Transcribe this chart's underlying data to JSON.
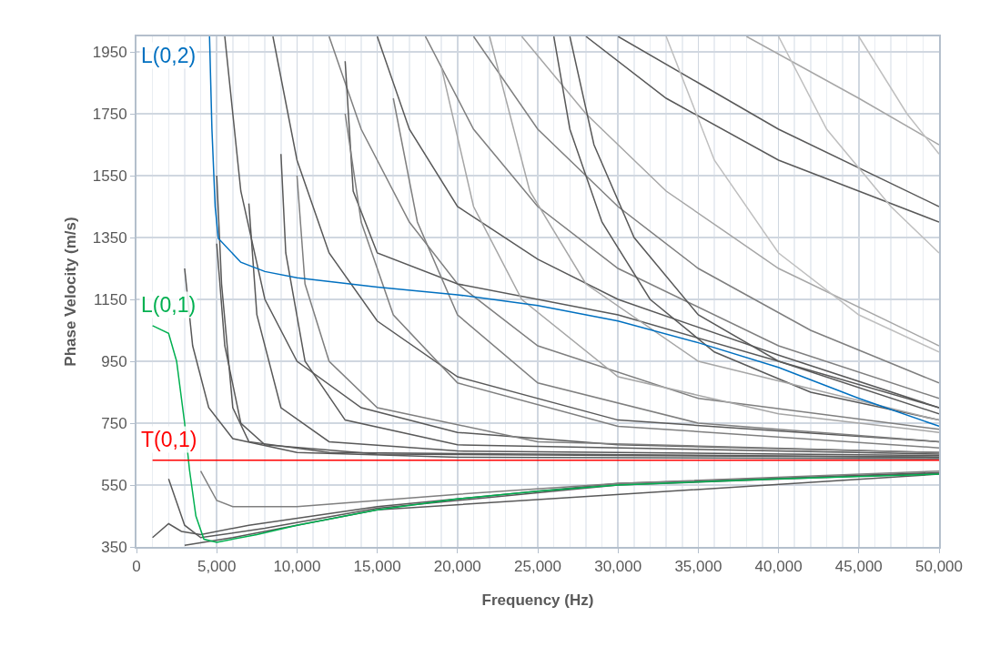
{
  "chart_data": {
    "type": "line",
    "xlabel": "Frequency (Hz)",
    "ylabel": "Phase Velocity (m/s)",
    "xlim": [
      0,
      50000
    ],
    "ylim": [
      350,
      2000
    ],
    "xticks": [
      0,
      {
        "value": 5000,
        "label": "5,000"
      },
      {
        "value": 10000,
        "label": "10,000"
      },
      {
        "value": 15000,
        "label": "15,000"
      },
      {
        "value": 20000,
        "label": "20,000"
      },
      {
        "value": 25000,
        "label": "25,000"
      },
      {
        "value": 30000,
        "label": "30,000"
      },
      {
        "value": 35000,
        "label": "35,000"
      },
      {
        "value": 40000,
        "label": "40,000"
      },
      {
        "value": 45000,
        "label": "45,000"
      },
      {
        "value": 50000,
        "label": "50,000"
      }
    ],
    "yticks": [
      350,
      550,
      750,
      950,
      1150,
      1350,
      1550,
      1750,
      1950
    ],
    "grid": true,
    "legend": false,
    "marker": "none",
    "line_style": "solid",
    "series": [
      {
        "color": "#595959",
        "x": [
          1000,
          2000,
          2800,
          4000,
          7000,
          15000,
          30000,
          50000
        ],
        "values": [
          380,
          425,
          400,
          390,
          420,
          480,
          555,
          590
        ]
      },
      {
        "color": "#595959",
        "x": [
          2000,
          3000,
          4000,
          8000,
          15000,
          30000,
          50000
        ],
        "values": [
          570,
          420,
          380,
          410,
          475,
          550,
          588
        ]
      },
      {
        "color": "#7f7f7f",
        "x": [
          4000,
          5000,
          6000,
          10000,
          20000,
          30000,
          50000
        ],
        "values": [
          595,
          500,
          480,
          480,
          520,
          555,
          595
        ]
      },
      {
        "color": "#595959",
        "x": [
          3000,
          6000,
          15000,
          50000
        ],
        "values": [
          355,
          380,
          470,
          585
        ]
      },
      {
        "color": "#595959",
        "x": [
          3000,
          3500,
          4500,
          6000,
          10000,
          20000,
          50000
        ],
        "values": [
          1250,
          1000,
          800,
          700,
          655,
          640,
          635
        ]
      },
      {
        "color": "#595959",
        "x": [
          5000,
          5500,
          6500,
          8000,
          15000,
          50000
        ],
        "values": [
          1330,
          1000,
          750,
          680,
          650,
          640
        ]
      },
      {
        "color": "#595959",
        "x": [
          5000,
          5300,
          6000,
          7000,
          12000,
          50000
        ],
        "values": [
          1550,
          1200,
          800,
          690,
          655,
          640
        ]
      },
      {
        "color": "#595959",
        "x": [
          7000,
          7500,
          9000,
          12000,
          20000,
          50000
        ],
        "values": [
          1460,
          1100,
          800,
          690,
          660,
          645
        ]
      },
      {
        "color": "#595959",
        "x": [
          9000,
          9300,
          10500,
          13000,
          20000,
          50000
        ],
        "values": [
          1620,
          1300,
          950,
          760,
          680,
          650
        ]
      },
      {
        "color": "#595959",
        "x": [
          5500,
          6500,
          8000,
          10000,
          14000,
          20000,
          30000,
          50000
        ],
        "values": [
          2000,
          1500,
          1150,
          950,
          800,
          720,
          680,
          655
        ]
      },
      {
        "color": "#595959",
        "x": [
          8500,
          10000,
          12000,
          15000,
          20000,
          30000,
          50000
        ],
        "values": [
          2000,
          1600,
          1300,
          1080,
          900,
          760,
          690
        ]
      },
      {
        "color": "#7f7f7f",
        "x": [
          12000,
          14000,
          17000,
          20000,
          25000,
          35000,
          50000
        ],
        "values": [
          2000,
          1700,
          1400,
          1200,
          1000,
          830,
          730
        ]
      },
      {
        "color": "#595959",
        "x": [
          13000,
          13500,
          15000,
          20000,
          30000,
          40000,
          50000
        ],
        "values": [
          1920,
          1500,
          1300,
          1200,
          1100,
          950,
          780
        ]
      },
      {
        "color": "#595959",
        "x": [
          15000,
          17000,
          20000,
          25000,
          30000,
          40000,
          50000
        ],
        "values": [
          2000,
          1700,
          1450,
          1280,
          1150,
          970,
          800
        ]
      },
      {
        "color": "#7f7f7f",
        "x": [
          18000,
          21000,
          25000,
          30000,
          40000,
          50000
        ],
        "values": [
          2000,
          1700,
          1450,
          1250,
          1000,
          830
        ]
      },
      {
        "color": "#7f7f7f",
        "x": [
          21000,
          25000,
          30000,
          35000,
          42000,
          50000
        ],
        "values": [
          2000,
          1700,
          1450,
          1250,
          1050,
          880
        ]
      },
      {
        "color": "#a6a6a6",
        "x": [
          24000,
          28000,
          33000,
          40000,
          50000
        ],
        "values": [
          2000,
          1750,
          1500,
          1250,
          1000
        ]
      },
      {
        "color": "#595959",
        "x": [
          28000,
          33000,
          40000,
          45000,
          50000
        ],
        "values": [
          2000,
          1800,
          1600,
          1500,
          1400
        ]
      },
      {
        "color": "#595959",
        "x": [
          30000,
          35000,
          40000,
          50000
        ],
        "values": [
          2000,
          1850,
          1700,
          1450
        ]
      },
      {
        "color": "#a6a6a6",
        "x": [
          38000,
          45000,
          50000
        ],
        "values": [
          2000,
          1800,
          1650
        ]
      },
      {
        "color": "#595959",
        "x": [
          26000,
          27000,
          29000,
          32000,
          36000,
          42000,
          50000
        ],
        "values": [
          2000,
          1700,
          1400,
          1150,
          980,
          850,
          760
        ]
      },
      {
        "color": "#595959",
        "x": [
          27000,
          28500,
          31000,
          35000,
          40000,
          50000
        ],
        "values": [
          2000,
          1650,
          1350,
          1100,
          950,
          800
        ]
      },
      {
        "color": "#7f7f7f",
        "x": [
          10000,
          10500,
          12000,
          15000,
          25000,
          50000
        ],
        "values": [
          1550,
          1200,
          950,
          800,
          690,
          655
        ]
      },
      {
        "color": "#7f7f7f",
        "x": [
          13000,
          14000,
          16000,
          20000,
          30000,
          50000
        ],
        "values": [
          1750,
          1400,
          1100,
          880,
          740,
          670
        ]
      },
      {
        "color": "#7f7f7f",
        "x": [
          16000,
          17500,
          20000,
          25000,
          35000,
          50000
        ],
        "values": [
          1800,
          1400,
          1100,
          880,
          750,
          690
        ]
      },
      {
        "color": "#a6a6a6",
        "x": [
          19000,
          21000,
          24000,
          30000,
          40000,
          50000
        ],
        "values": [
          1900,
          1450,
          1150,
          900,
          780,
          720
        ]
      },
      {
        "color": "#a6a6a6",
        "x": [
          22000,
          24500,
          28000,
          35000,
          50000
        ],
        "values": [
          2000,
          1500,
          1200,
          950,
          760
        ]
      },
      {
        "color": "#bfbfbf",
        "x": [
          33000,
          36000,
          40000,
          45000,
          50000
        ],
        "values": [
          2000,
          1600,
          1300,
          1100,
          980
        ]
      },
      {
        "color": "#bfbfbf",
        "x": [
          40000,
          43000,
          47000,
          50000
        ],
        "values": [
          2000,
          1700,
          1450,
          1300
        ]
      },
      {
        "color": "#bfbfbf",
        "x": [
          45000,
          48000,
          50000
        ],
        "values": [
          2000,
          1750,
          1620
        ]
      },
      {
        "name": "L(0,2)",
        "color": "#0070c0",
        "x": [
          4550,
          4700,
          4900,
          5100,
          6500,
          8000,
          10000,
          15000,
          20000,
          25000,
          30000,
          35000,
          40000,
          45000,
          50000
        ],
        "values": [
          2000,
          1700,
          1450,
          1347,
          1270,
          1240,
          1220,
          1190,
          1165,
          1130,
          1080,
          1010,
          930,
          830,
          740
        ]
      },
      {
        "name": "L(0,1)",
        "color": "#00b050",
        "x": [
          1000,
          2000,
          2500,
          3000,
          3300,
          3700,
          4200,
          5000,
          7500,
          10000,
          15000,
          20000,
          25000,
          30000,
          40000,
          50000
        ],
        "values": [
          1065,
          1040,
          950,
          750,
          600,
          450,
          375,
          365,
          390,
          420,
          470,
          505,
          530,
          550,
          570,
          585
        ]
      },
      {
        "name": "T(0,1)",
        "color": "#ff0000",
        "x": [
          1000,
          50000
        ],
        "values": [
          630,
          630
        ]
      }
    ]
  }
}
